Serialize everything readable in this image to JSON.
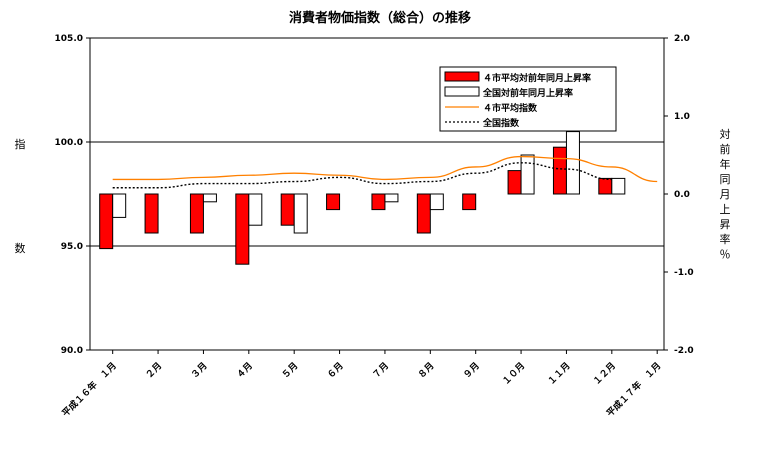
{
  "chart_data": {
    "type": "bar",
    "title": "消費者物価指数（総合）の推移",
    "ylabel": "指\n\n\n数",
    "y2label": "対前年同月上昇率％",
    "ylim": [
      90.0,
      105.0
    ],
    "y2lim": [
      -2.0,
      2.0
    ],
    "yticks": [
      "90.0",
      "95.0",
      "100.0",
      "105.0"
    ],
    "y2ticks": [
      "-2.0",
      "-1.0",
      "0.0",
      "1.0",
      "2.0"
    ],
    "categories": [
      "平成１６年　１月",
      "２月",
      "３月",
      "４月",
      "５月",
      "６月",
      "７月",
      "８月",
      "９月",
      "１０月",
      "１１月",
      "１２月",
      "平成１７年　１月"
    ],
    "series": [
      {
        "name": "４市平均対前年同月上昇率",
        "kind": "bar",
        "axis": "right",
        "color": "#ff0000",
        "values": [
          -0.7,
          -0.5,
          -0.5,
          -0.9,
          -0.4,
          -0.2,
          -0.2,
          -0.5,
          -0.2,
          0.3,
          0.6,
          0.2,
          null
        ]
      },
      {
        "name": "全国対前年同月上昇率",
        "kind": "bar",
        "axis": "right",
        "color": "#ffffff",
        "values": [
          -0.3,
          null,
          -0.1,
          -0.4,
          -0.5,
          null,
          -0.1,
          -0.2,
          null,
          0.5,
          0.8,
          0.2,
          null
        ]
      },
      {
        "name": "４市平均指数",
        "kind": "line",
        "axis": "left",
        "color": "#ff8000",
        "dash": "solid",
        "values": [
          98.2,
          98.2,
          98.3,
          98.4,
          98.5,
          98.4,
          98.2,
          98.3,
          98.8,
          99.3,
          99.2,
          98.8,
          98.1
        ]
      },
      {
        "name": "全国指数",
        "kind": "line",
        "axis": "left",
        "color": "#000000",
        "dash": "dotted",
        "values": [
          97.8,
          97.8,
          98.0,
          98.0,
          98.1,
          98.3,
          98.0,
          98.1,
          98.5,
          99.0,
          98.7,
          98.2,
          null
        ]
      }
    ],
    "legend_position": "top-right"
  }
}
